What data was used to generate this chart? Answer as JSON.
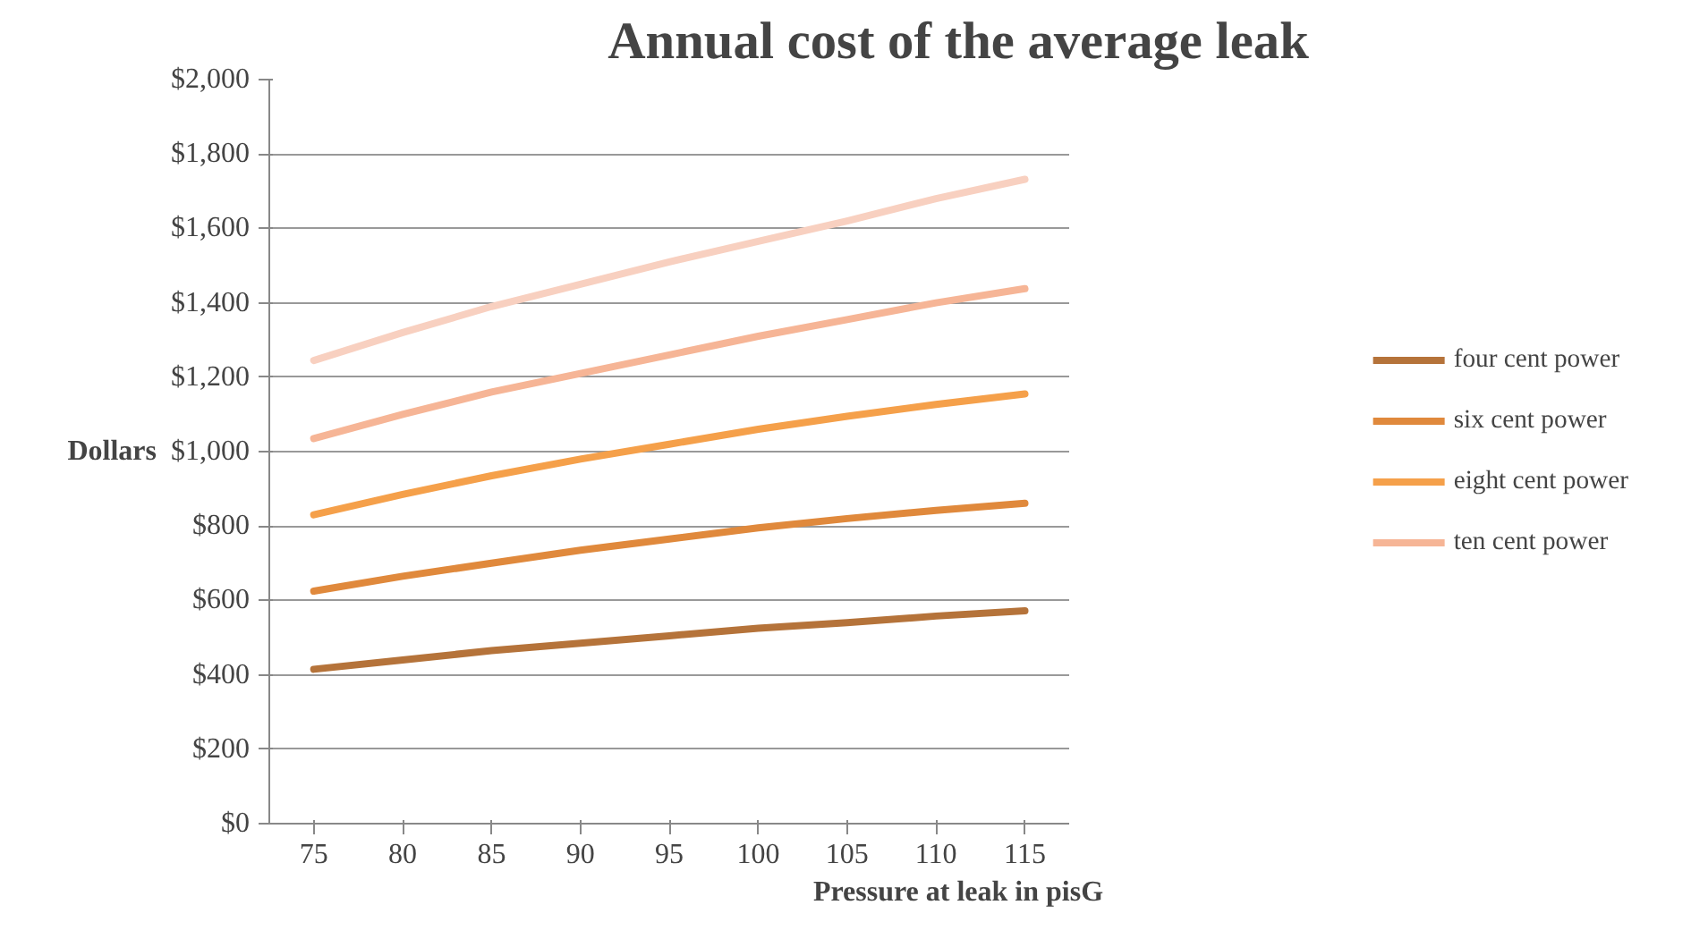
{
  "chart_data": {
    "type": "line",
    "title": "Annual cost of the average leak",
    "xlabel": "Pressure at leak in pisG",
    "ylabel": "Dollars",
    "categories": [
      "75",
      "80",
      "85",
      "90",
      "95",
      "100",
      "105",
      "110",
      "115"
    ],
    "series": [
      {
        "name": "four cent power",
        "color": "#b5733a",
        "values": [
          415,
          440,
          465,
          485,
          505,
          525,
          540,
          558,
          572
        ]
      },
      {
        "name": "six cent power",
        "color": "#e0893c",
        "values": [
          625,
          665,
          700,
          735,
          765,
          795,
          820,
          842,
          861
        ]
      },
      {
        "name": "eight cent power",
        "color": "#f5a04a",
        "values": [
          830,
          885,
          935,
          980,
          1020,
          1060,
          1095,
          1127,
          1155
        ]
      },
      {
        "name": "ten cent power",
        "color": "#f6b596",
        "values": [
          1035,
          1100,
          1160,
          1210,
          1260,
          1310,
          1355,
          1400,
          1438
        ]
      },
      {
        "color": "#f8d0c0",
        "values": [
          1245,
          1320,
          1390,
          1450,
          1510,
          1565,
          1620,
          1680,
          1732
        ]
      }
    ],
    "ylim": [
      0,
      2000
    ],
    "yticks": [
      {
        "value": 0,
        "label": "$0"
      },
      {
        "value": 200,
        "label": "$200"
      },
      {
        "value": 400,
        "label": "$400"
      },
      {
        "value": 600,
        "label": "$600"
      },
      {
        "value": 800,
        "label": "$800"
      },
      {
        "value": 1000,
        "label": "$1,000"
      },
      {
        "value": 1200,
        "label": "$1,200"
      },
      {
        "value": 1400,
        "label": "$1,400"
      },
      {
        "value": 1600,
        "label": "$1,600"
      },
      {
        "value": 1800,
        "label": "$1,800"
      },
      {
        "value": 2000,
        "label": "$2,000"
      }
    ],
    "grid": "y",
    "legend": "right",
    "marker": "none",
    "line_style": "solid"
  }
}
